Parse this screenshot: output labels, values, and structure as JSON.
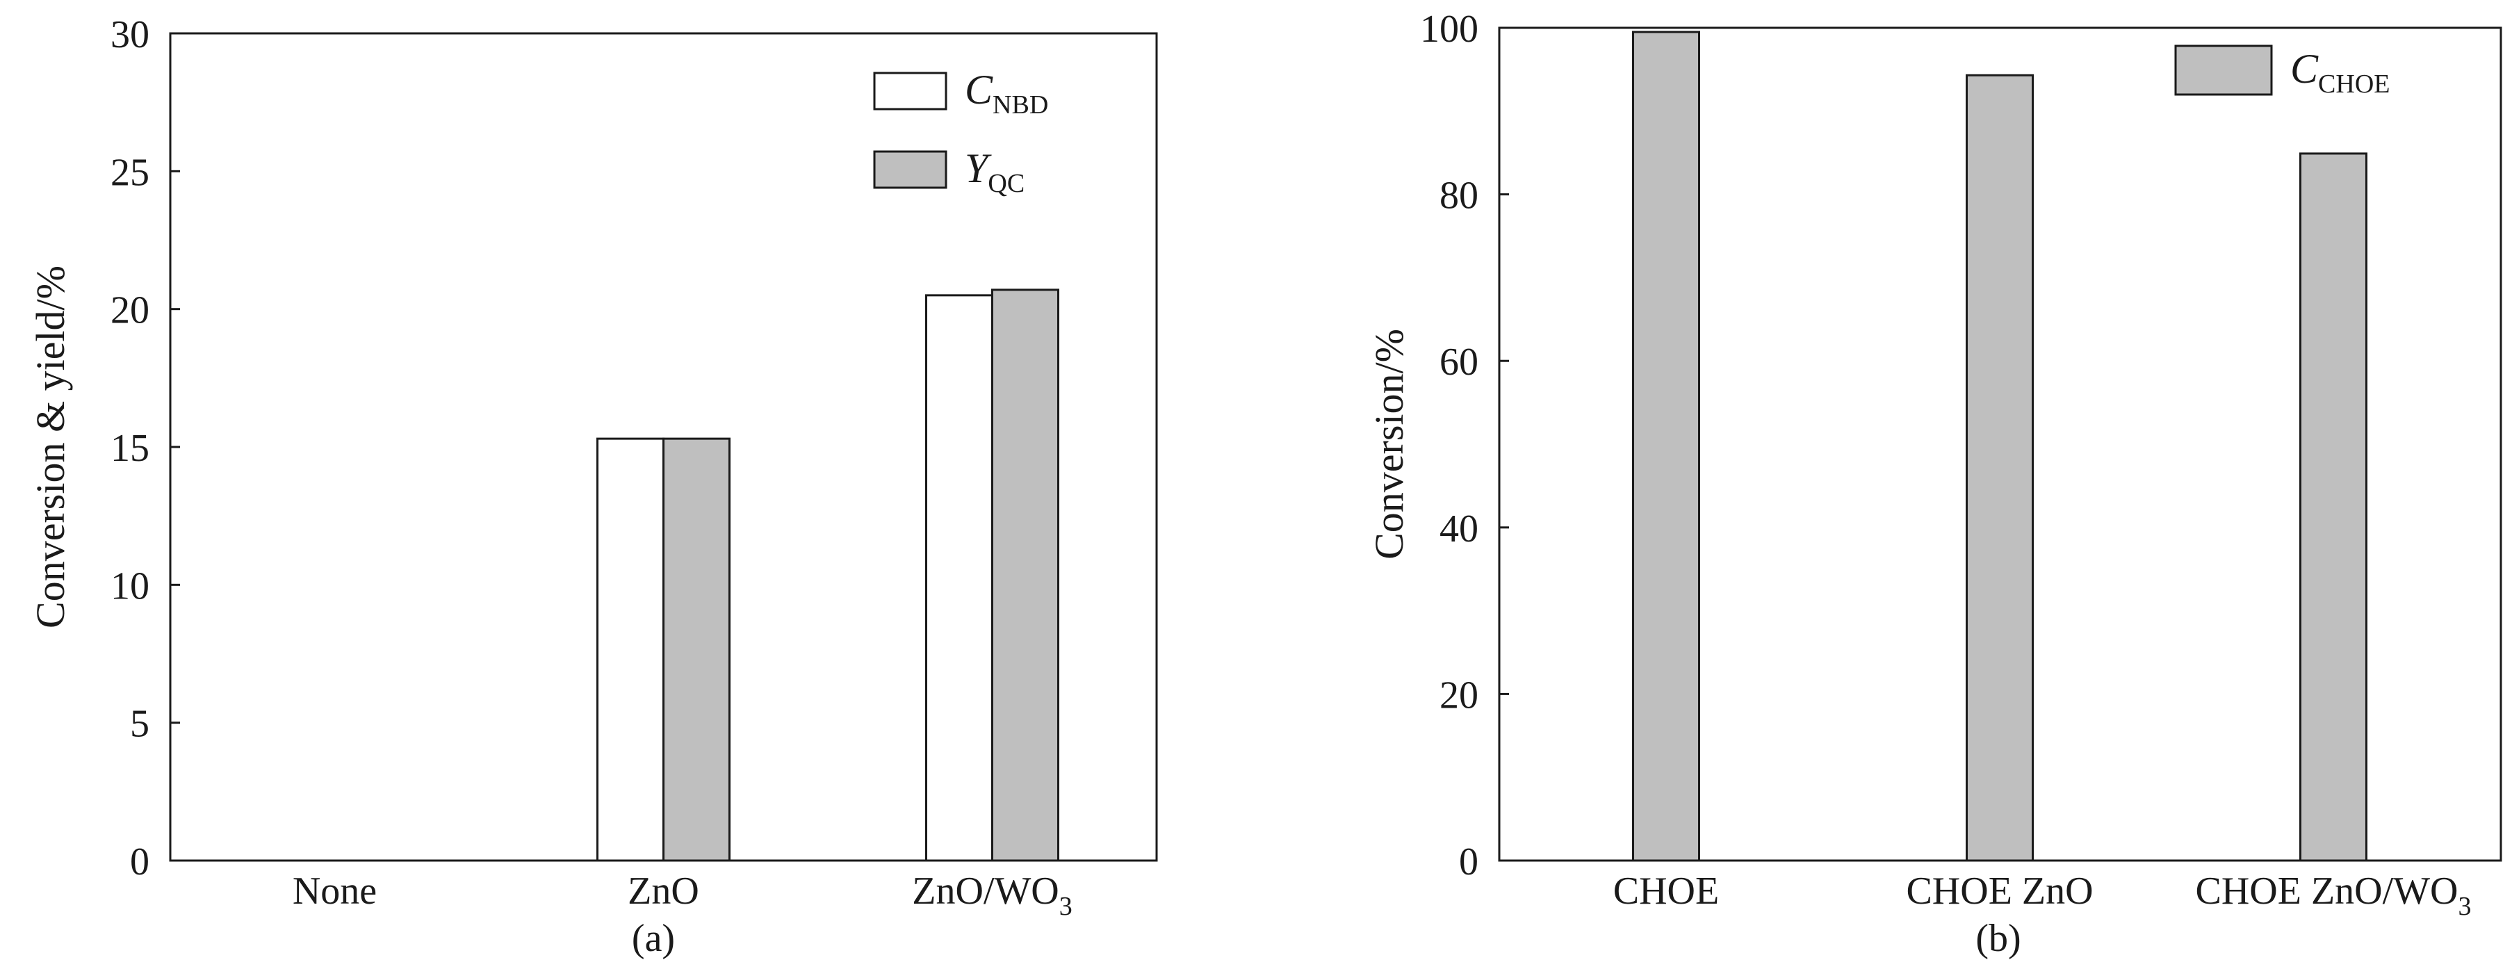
{
  "chart_data": [
    {
      "type": "bar",
      "panel_label": "(a)",
      "categories": [
        "None",
        "ZnO",
        "ZnO/WO3"
      ],
      "category_labels": [
        {
          "main": "None",
          "sub": ""
        },
        {
          "main": "ZnO",
          "sub": ""
        },
        {
          "main": "ZnO/WO",
          "sub": "3"
        }
      ],
      "series": [
        {
          "name": "C_NBD",
          "label_main": "C",
          "label_sub": "NBD",
          "color": "#ffffff",
          "values": [
            0,
            15.3,
            20.5
          ]
        },
        {
          "name": "Y_QC",
          "label_main": "Y",
          "label_sub": "QC",
          "color": "#bfbfbf",
          "values": [
            0,
            15.3,
            20.7
          ]
        }
      ],
      "ylabel": "Conversion & yield/%",
      "xlabel": "",
      "ylim": [
        0,
        30
      ],
      "yticks": [
        0,
        5,
        10,
        15,
        20,
        25,
        30
      ],
      "grid": false,
      "legend_position": "top-right"
    },
    {
      "type": "bar",
      "panel_label": "(b)",
      "categories": [
        "CHOE",
        "CHOE ZnO",
        "CHOE ZnO/WO3"
      ],
      "category_labels": [
        {
          "main": "CHOE",
          "sub": ""
        },
        {
          "main": "CHOE ZnO",
          "sub": ""
        },
        {
          "main": "CHOE ZnO/WO",
          "sub": "3"
        }
      ],
      "series": [
        {
          "name": "C_CHOE",
          "label_main": "C",
          "label_sub": "CHOE",
          "color": "#bfbfbf",
          "values": [
            99.5,
            94.3,
            84.9
          ]
        }
      ],
      "ylabel": "Conversion/%",
      "xlabel": "",
      "ylim": [
        0,
        100
      ],
      "yticks": [
        0,
        20,
        40,
        60,
        80,
        100
      ],
      "grid": false,
      "legend_position": "top-right"
    }
  ]
}
